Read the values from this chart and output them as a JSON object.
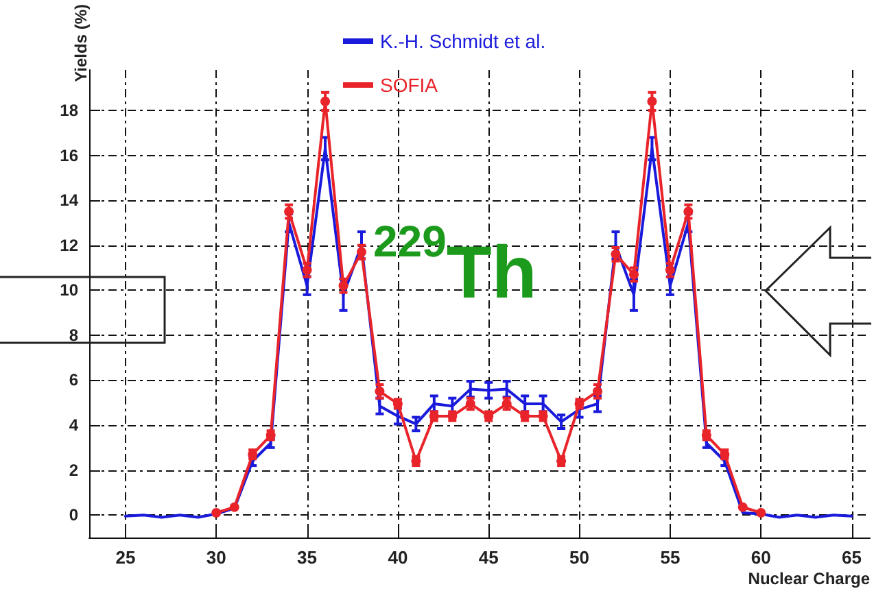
{
  "chart_data": {
    "type": "line",
    "xlabel": "Nuclear Charge",
    "ylabel": "Yields (%)",
    "xlim": [
      23,
      66
    ],
    "xticks": [
      25,
      30,
      35,
      40,
      45,
      50,
      55,
      60,
      65
    ],
    "ylim": [
      -1,
      19.8
    ],
    "yticks": [
      0,
      2,
      4,
      6,
      8,
      10,
      12,
      14,
      16,
      18
    ],
    "grid": true,
    "legend": "top",
    "line_style": "solid",
    "annotations": [
      "$^{229}$Th"
    ],
    "series": [
      {
        "name": "K.-H. Schmidt et al.",
        "color": "#1a1adc",
        "marker": "none",
        "x": [
          25,
          26,
          27,
          28,
          29,
          30,
          31,
          32,
          33,
          34,
          35,
          36,
          37,
          38,
          39,
          40,
          41,
          42,
          43,
          44,
          45,
          46,
          47,
          48,
          49,
          50,
          51,
          52,
          53,
          54,
          55,
          56,
          57,
          58,
          59,
          60,
          61,
          62,
          63,
          64,
          65
        ],
        "values": [
          -0.05,
          0,
          -0.1,
          0,
          -0.1,
          0.05,
          0.3,
          2.4,
          3.2,
          13.0,
          10.2,
          16.3,
          9.8,
          12.0,
          4.85,
          4.4,
          4.05,
          4.95,
          4.85,
          5.6,
          5.55,
          5.6,
          4.95,
          4.95,
          4.15,
          4.7,
          4.95,
          12.0,
          9.8,
          16.3,
          10.2,
          13.0,
          3.2,
          2.4,
          0.1,
          0.05,
          -0.1,
          0,
          -0.1,
          0,
          -0.05
        ],
        "errors": [
          null,
          null,
          null,
          null,
          null,
          null,
          null,
          0.2,
          0.2,
          0.4,
          0.4,
          0.5,
          0.7,
          0.6,
          0.35,
          0.35,
          0.3,
          0.35,
          0.35,
          0.35,
          0.35,
          0.35,
          0.35,
          0.35,
          0.3,
          0.35,
          0.35,
          0.6,
          0.7,
          0.5,
          0.4,
          0.4,
          0.2,
          0.2,
          null,
          null,
          null,
          null,
          null,
          null,
          null
        ]
      },
      {
        "name": "SOFIA",
        "color": "#e8242a",
        "marker": "circle",
        "x": [
          30,
          31,
          32,
          33,
          34,
          35,
          36,
          37,
          38,
          39,
          40,
          41,
          42,
          43,
          44,
          45,
          46,
          47,
          48,
          49,
          50,
          51,
          52,
          53,
          54,
          55,
          56,
          57,
          58,
          59,
          60
        ],
        "values": [
          0.1,
          0.35,
          2.7,
          3.55,
          13.5,
          10.9,
          18.4,
          10.2,
          11.7,
          5.5,
          4.95,
          2.4,
          4.4,
          4.4,
          4.95,
          4.4,
          4.95,
          4.4,
          4.4,
          2.4,
          4.95,
          5.5,
          11.6,
          10.7,
          18.4,
          10.9,
          13.5,
          3.55,
          2.7,
          0.35,
          0.1
        ],
        "errors": [
          null,
          null,
          0.2,
          0.2,
          0.3,
          0.3,
          0.4,
          0.3,
          0.3,
          0.3,
          0.2,
          0.2,
          0.2,
          0.2,
          0.25,
          0.2,
          0.25,
          0.2,
          0.2,
          0.2,
          0.2,
          0.3,
          0.3,
          0.3,
          0.4,
          0.3,
          0.3,
          0.2,
          0.2,
          null,
          null
        ]
      }
    ]
  }
}
